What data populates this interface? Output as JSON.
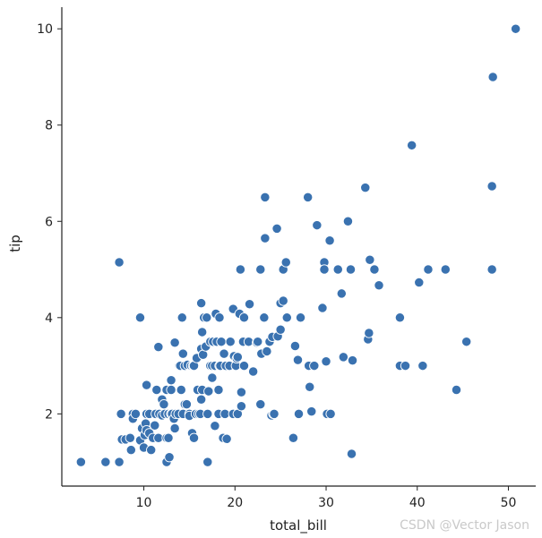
{
  "chart_data": {
    "type": "scatter",
    "title": "",
    "xlabel": "total_bill",
    "ylabel": "tip",
    "xlim": [
      1.0,
      53.0
    ],
    "ylim": [
      0.5,
      10.45
    ],
    "xticks": [
      10,
      20,
      30,
      40,
      50
    ],
    "yticks": [
      2,
      4,
      6,
      8,
      10
    ],
    "grid": false,
    "marker_color": "#3a72b0",
    "marker_edge": "#ffffff",
    "points": [
      [
        3.1,
        1.0
      ],
      [
        5.8,
        1.0
      ],
      [
        7.3,
        1.0
      ],
      [
        7.3,
        5.15
      ],
      [
        7.5,
        2.0
      ],
      [
        7.6,
        1.47
      ],
      [
        8.0,
        1.47
      ],
      [
        8.5,
        1.5
      ],
      [
        8.6,
        1.25
      ],
      [
        8.8,
        2.0
      ],
      [
        8.8,
        1.9
      ],
      [
        9.1,
        2.0
      ],
      [
        9.6,
        1.45
      ],
      [
        9.6,
        4.0
      ],
      [
        9.8,
        1.7
      ],
      [
        10.0,
        1.3
      ],
      [
        10.1,
        1.56
      ],
      [
        10.2,
        1.8
      ],
      [
        10.3,
        2.0
      ],
      [
        10.3,
        1.66
      ],
      [
        10.3,
        2.6
      ],
      [
        10.6,
        1.6
      ],
      [
        10.6,
        2.0
      ],
      [
        10.8,
        1.25
      ],
      [
        11.0,
        1.5
      ],
      [
        11.2,
        1.76
      ],
      [
        11.3,
        2.0
      ],
      [
        11.4,
        2.5
      ],
      [
        11.6,
        3.39
      ],
      [
        11.6,
        1.5
      ],
      [
        11.7,
        2.0
      ],
      [
        12.0,
        2.3
      ],
      [
        12.0,
        1.97
      ],
      [
        12.2,
        2.2
      ],
      [
        12.3,
        2.0
      ],
      [
        12.5,
        2.5
      ],
      [
        12.5,
        1.5
      ],
      [
        12.5,
        1.0
      ],
      [
        12.7,
        1.5
      ],
      [
        12.7,
        2.0
      ],
      [
        12.8,
        1.1
      ],
      [
        13.0,
        2.5
      ],
      [
        13.0,
        2.0
      ],
      [
        13.0,
        2.7
      ],
      [
        13.1,
        2.0
      ],
      [
        13.3,
        1.9
      ],
      [
        13.4,
        1.7
      ],
      [
        13.4,
        3.48
      ],
      [
        13.5,
        2.0
      ],
      [
        13.8,
        2.0
      ],
      [
        13.9,
        3.0
      ],
      [
        14.0,
        3.0
      ],
      [
        14.1,
        2.5
      ],
      [
        14.2,
        4.0
      ],
      [
        14.3,
        2.0
      ],
      [
        14.3,
        3.25
      ],
      [
        14.5,
        2.2
      ],
      [
        14.5,
        3.0
      ],
      [
        14.7,
        2.2
      ],
      [
        14.8,
        3.02
      ],
      [
        15.0,
        2.0
      ],
      [
        15.0,
        1.96
      ],
      [
        15.2,
        3.0
      ],
      [
        15.3,
        1.6
      ],
      [
        15.4,
        3.0
      ],
      [
        15.5,
        3.0
      ],
      [
        15.5,
        1.5
      ],
      [
        15.7,
        2.0
      ],
      [
        15.8,
        3.16
      ],
      [
        15.9,
        2.5
      ],
      [
        16.0,
        2.0
      ],
      [
        16.2,
        2.0
      ],
      [
        16.3,
        2.3
      ],
      [
        16.3,
        3.35
      ],
      [
        16.3,
        4.3
      ],
      [
        16.4,
        2.5
      ],
      [
        16.4,
        3.7
      ],
      [
        16.5,
        3.23
      ],
      [
        16.6,
        4.0
      ],
      [
        16.8,
        3.4
      ],
      [
        16.9,
        4.0
      ],
      [
        17.0,
        2.0
      ],
      [
        17.0,
        1.0
      ],
      [
        17.1,
        2.47
      ],
      [
        17.3,
        3.5
      ],
      [
        17.3,
        3.0
      ],
      [
        17.5,
        2.75
      ],
      [
        17.5,
        3.0
      ],
      [
        17.6,
        3.5
      ],
      [
        17.8,
        1.75
      ],
      [
        17.8,
        3.0
      ],
      [
        17.9,
        4.08
      ],
      [
        18.0,
        3.5
      ],
      [
        18.2,
        2.0
      ],
      [
        18.2,
        2.5
      ],
      [
        18.3,
        3.0
      ],
      [
        18.3,
        4.0
      ],
      [
        18.4,
        3.0
      ],
      [
        18.5,
        3.5
      ],
      [
        18.7,
        1.5
      ],
      [
        18.8,
        3.25
      ],
      [
        18.9,
        2.0
      ],
      [
        19.0,
        3.0
      ],
      [
        19.1,
        1.48
      ],
      [
        19.4,
        3.0
      ],
      [
        19.5,
        3.5
      ],
      [
        19.8,
        4.18
      ],
      [
        19.8,
        2.0
      ],
      [
        19.9,
        3.2
      ],
      [
        20.1,
        3.0
      ],
      [
        20.2,
        3.15
      ],
      [
        20.3,
        3.18
      ],
      [
        20.3,
        2.0
      ],
      [
        20.5,
        4.08
      ],
      [
        20.6,
        5.0
      ],
      [
        20.7,
        2.45
      ],
      [
        20.7,
        2.16
      ],
      [
        20.9,
        3.5
      ],
      [
        21.0,
        3.0
      ],
      [
        21.0,
        4.0
      ],
      [
        21.5,
        3.5
      ],
      [
        21.6,
        4.28
      ],
      [
        22.0,
        2.88
      ],
      [
        22.4,
        3.48
      ],
      [
        22.5,
        3.5
      ],
      [
        22.8,
        5.0
      ],
      [
        22.8,
        2.2
      ],
      [
        22.9,
        3.25
      ],
      [
        23.2,
        4.0
      ],
      [
        23.3,
        6.5
      ],
      [
        23.3,
        5.65
      ],
      [
        23.5,
        3.3
      ],
      [
        23.8,
        3.5
      ],
      [
        24.0,
        1.97
      ],
      [
        24.1,
        3.6
      ],
      [
        24.2,
        2.0
      ],
      [
        24.3,
        2.0
      ],
      [
        24.6,
        5.85
      ],
      [
        24.7,
        3.61
      ],
      [
        25.0,
        3.75
      ],
      [
        25.0,
        4.3
      ],
      [
        25.3,
        5.0
      ],
      [
        25.3,
        4.35
      ],
      [
        25.6,
        5.15
      ],
      [
        25.7,
        4.0
      ],
      [
        26.4,
        1.5
      ],
      [
        26.6,
        3.41
      ],
      [
        26.9,
        3.12
      ],
      [
        27.0,
        2.0
      ],
      [
        27.2,
        4.0
      ],
      [
        28.0,
        6.5
      ],
      [
        28.1,
        3.0
      ],
      [
        28.2,
        2.56
      ],
      [
        28.4,
        2.05
      ],
      [
        28.7,
        3.0
      ],
      [
        29.0,
        5.92
      ],
      [
        29.6,
        4.2
      ],
      [
        29.8,
        5.15
      ],
      [
        29.8,
        5.0
      ],
      [
        30.0,
        3.09
      ],
      [
        30.1,
        2.0
      ],
      [
        30.4,
        5.6
      ],
      [
        30.5,
        2.0
      ],
      [
        31.3,
        5.0
      ],
      [
        31.7,
        4.5
      ],
      [
        31.9,
        3.18
      ],
      [
        32.4,
        6.0
      ],
      [
        32.7,
        5.0
      ],
      [
        32.8,
        1.17
      ],
      [
        32.9,
        3.11
      ],
      [
        34.3,
        6.7
      ],
      [
        34.6,
        3.55
      ],
      [
        34.7,
        3.68
      ],
      [
        34.8,
        5.2
      ],
      [
        35.3,
        5.0
      ],
      [
        35.8,
        4.67
      ],
      [
        38.1,
        4.0
      ],
      [
        38.1,
        3.0
      ],
      [
        38.7,
        3.0
      ],
      [
        39.4,
        7.58
      ],
      [
        40.2,
        4.73
      ],
      [
        40.6,
        3.0
      ],
      [
        41.2,
        5.0
      ],
      [
        43.1,
        5.0
      ],
      [
        44.3,
        2.5
      ],
      [
        45.4,
        3.5
      ],
      [
        48.2,
        5.0
      ],
      [
        48.2,
        6.73
      ],
      [
        48.3,
        9.0
      ],
      [
        50.8,
        10.0
      ]
    ]
  },
  "watermark": "CSDN @Vector Jason"
}
